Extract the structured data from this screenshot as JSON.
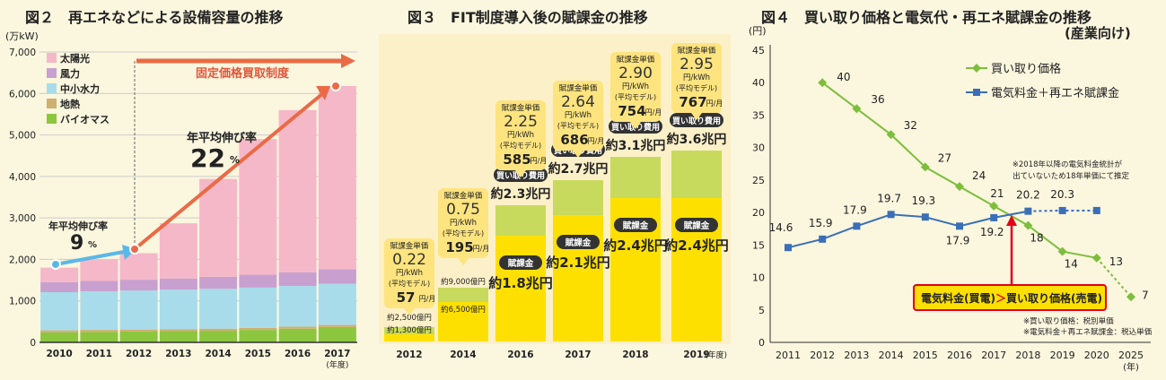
{
  "colors": {
    "solar": "#f5b8c8",
    "wind": "#c8a0d0",
    "hydro": "#a8dcea",
    "geo": "#d0b070",
    "bio": "#8cc63f",
    "arrow": "#ea6a45",
    "blue": "#5ab8e8",
    "yellow": "#fde000",
    "lime": "#c8da5e",
    "bubble": "#fde47f",
    "green": "#7dbe3c",
    "navy": "#3a6fb7",
    "red": "#e10019"
  },
  "fig2": {
    "title": "図２　再エネなどによる設備容量の推移",
    "unit": "(万kW)",
    "fit_label": "固定価格買取制度",
    "growth1": {
      "label": "年平均伸び率",
      "value": "9",
      "unit": "%"
    },
    "growth2": {
      "label": "年平均伸び率",
      "value": "22",
      "unit": "%"
    },
    "year_note": "(年度)"
  },
  "fig3": {
    "title": "図３　FIT制度導入後の賦課金の推移",
    "year_note": "(年度)"
  },
  "fig4": {
    "title": "図４　買い取り価格と電気代・再エネ賦課金の推移",
    "subtitle": "(産業向け)",
    "unit": "(円)",
    "year_note": "(年)",
    "note_top1": "※2018年以降の電気料金統計が",
    "note_top2": "出ていないため18年単価にて推定",
    "callout_a": "電気料金(買電)",
    "callout_gt": "＞",
    "callout_b": "買い取り価格(売電)",
    "note_bottom1": "※買い取り価格：税別単価",
    "note_bottom2": "※電気料金＋再エネ賦課金：税込単価"
  },
  "chart_data": [
    {
      "type": "bar",
      "stacked": true,
      "title": "図２　再エネなどによる設備容量の推移",
      "ylabel": "(万kW)",
      "ylim": [
        0,
        7000
      ],
      "yticks": [
        "0",
        "1,000",
        "2,000",
        "3,000",
        "4,000",
        "5,000",
        "6,000",
        "7,000"
      ],
      "categories": [
        "2010",
        "2011",
        "2012",
        "2013",
        "2014",
        "2015",
        "2016",
        "2017"
      ],
      "series": [
        {
          "name": "バイオマス",
          "values": [
            240,
            250,
            260,
            270,
            280,
            300,
            330,
            370
          ]
        },
        {
          "name": "地熱",
          "values": [
            50,
            50,
            50,
            50,
            50,
            50,
            50,
            50
          ]
        },
        {
          "name": "中小水力",
          "values": [
            920,
            930,
            940,
            950,
            960,
            970,
            980,
            990
          ]
        },
        {
          "name": "風力",
          "values": [
            240,
            250,
            260,
            270,
            290,
            310,
            330,
            350
          ]
        },
        {
          "name": "太陽光",
          "values": [
            350,
            510,
            640,
            1330,
            2360,
            3270,
            3910,
            4420
          ]
        }
      ],
      "legend_order": [
        "太陽光",
        "風力",
        "中小水力",
        "地熱",
        "バイオマス"
      ],
      "legend_position": "top-left"
    },
    {
      "type": "bar",
      "stacked": true,
      "title": "図３　FIT制度導入後の賦課金の推移",
      "categories": [
        "2012",
        "2014",
        "2016",
        "2017",
        "2018",
        "2019"
      ],
      "series": [
        {
          "name": "賦課金",
          "values": [
            1300,
            6500,
            18000,
            21000,
            24000,
            24000
          ]
        },
        {
          "name": "買い取り費用",
          "values": [
            2500,
            9000,
            23000,
            27000,
            31000,
            36000
          ]
        }
      ],
      "bar_labels_lower": [
        "約1,300億円",
        "約6,500億円",
        "約1.8兆円",
        "約2.1兆円",
        "約2.4兆円",
        "約2.4兆円"
      ],
      "bar_labels_upper": [
        "約2,500億円",
        "約9,000億円",
        "約2.3兆円",
        "約2.7兆円",
        "約3.1兆円",
        "約3.6兆円"
      ],
      "bubbles": [
        {
          "head": "賦課金単価",
          "price": "0.22",
          "per": "円/kWh",
          "model": "(平均モデル)",
          "monthly": "57",
          "mu": "円/月"
        },
        {
          "head": "賦課金単価",
          "price": "0.75",
          "per": "円/kWh",
          "model": "(平均モデル)",
          "monthly": "195",
          "mu": "円/月"
        },
        {
          "head": "賦課金単価",
          "price": "2.25",
          "per": "円/kWh",
          "model": "(平均モデル)",
          "monthly": "585",
          "mu": "円/月"
        },
        {
          "head": "賦課金単価",
          "price": "2.64",
          "per": "円/kWh",
          "model": "(平均モデル)",
          "monthly": "686",
          "mu": "円/月"
        },
        {
          "head": "賦課金単価",
          "price": "2.90",
          "per": "円/kWh",
          "model": "(平均モデル)",
          "monthly": "754",
          "mu": "円/月"
        },
        {
          "head": "賦課金単価",
          "price": "2.95",
          "per": "円/kWh",
          "model": "(平均モデル)",
          "monthly": "767",
          "mu": "円/月"
        }
      ],
      "pill_labels": {
        "cost": "買い取り費用",
        "levy": "賦課金"
      }
    },
    {
      "type": "line",
      "title": "図４　買い取り価格と電気代・再エネ賦課金の推移",
      "ylim": [
        0,
        45
      ],
      "yticks": [
        "0",
        "5",
        "10",
        "15",
        "20",
        "25",
        "30",
        "35",
        "40",
        "45"
      ],
      "x": [
        "2011",
        "2012",
        "2013",
        "2014",
        "2015",
        "2016",
        "2017",
        "2018",
        "2019",
        "2020",
        "2025"
      ],
      "series": [
        {
          "name": "買い取り価格",
          "x": [
            "2012",
            "2013",
            "2014",
            "2015",
            "2016",
            "2017",
            "2018",
            "2019",
            "2020",
            "2025"
          ],
          "values": [
            40,
            36,
            32,
            27,
            24,
            21,
            18,
            14,
            13,
            7
          ],
          "labels": [
            "40",
            "36",
            "32",
            "27",
            "24",
            "21",
            "18",
            "14",
            "13",
            "7"
          ]
        },
        {
          "name": "電気料金＋再エネ賦課金",
          "x": [
            "2011",
            "2012",
            "2013",
            "2014",
            "2015",
            "2016",
            "2017",
            "2018",
            "2019",
            "2020"
          ],
          "values": [
            14.6,
            15.9,
            17.9,
            19.7,
            19.3,
            17.9,
            19.2,
            20.2,
            20.3,
            20.3
          ],
          "labels": [
            "14.6",
            "15.9",
            "17.9",
            "19.7",
            "19.3",
            "17.9",
            "19.2",
            "20.2",
            "20.3"
          ]
        }
      ],
      "legend_position": "top-right"
    }
  ]
}
